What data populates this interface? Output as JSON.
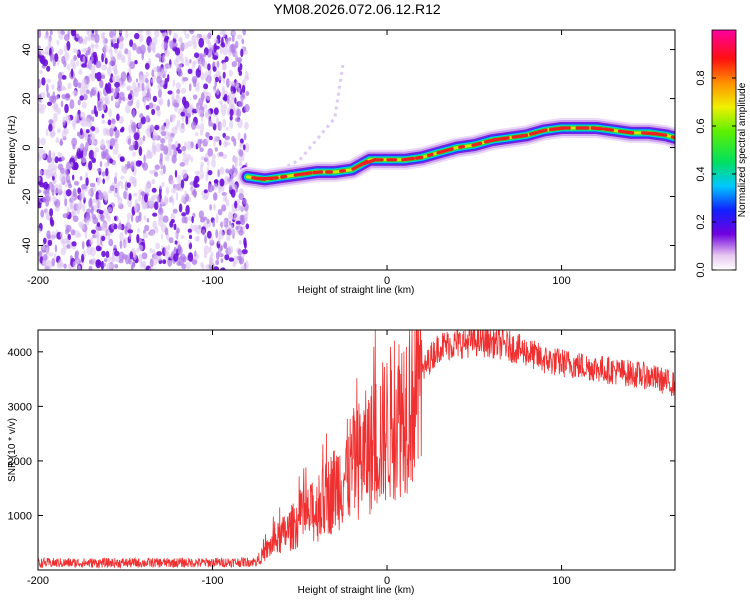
{
  "title": "YM08.2026.072.06.12.R12",
  "chart_data": [
    {
      "type": "heatmap",
      "name": "spectrogram",
      "xlabel": "Height of straight line (km)",
      "ylabel": "Frequency (Hz)",
      "xlim": [
        -200,
        165
      ],
      "ylim": [
        -50,
        48
      ],
      "xticks": [
        -200,
        -100,
        0,
        100
      ],
      "yticks": [
        -40,
        -20,
        0,
        20,
        40
      ],
      "colorbar_label": "Normalized spectral amplitude",
      "colorbar_ticks": [
        0.0,
        0.2,
        0.4,
        0.6,
        0.8
      ],
      "noise_region_x": [
        -200,
        -80
      ],
      "ridge": {
        "x": [
          -80,
          -70,
          -60,
          -50,
          -40,
          -30,
          -20,
          -10,
          0,
          10,
          20,
          30,
          40,
          50,
          60,
          70,
          80,
          90,
          100,
          110,
          120,
          130,
          140,
          150,
          160,
          165
        ],
        "y": [
          -12,
          -13,
          -12,
          -11,
          -10,
          -10,
          -9,
          -5,
          -5,
          -5,
          -4,
          -2,
          0,
          1,
          3,
          4,
          5,
          7,
          8,
          8,
          8,
          7,
          6,
          6,
          5,
          4
        ]
      },
      "streak": {
        "x": [
          -75,
          -50,
          -30,
          -25
        ],
        "y": [
          -14,
          -5,
          12,
          35
        ]
      }
    },
    {
      "type": "line",
      "name": "snr",
      "xlabel": "Height of straight line (km)",
      "ylabel": "SNR (10 * v/v)",
      "xlim": [
        -200,
        165
      ],
      "ylim": [
        0,
        4400
      ],
      "xticks": [
        -200,
        -100,
        0,
        100
      ],
      "yticks": [
        1000,
        2000,
        3000,
        4000
      ],
      "color": "#f03030",
      "envelope": {
        "x": [
          -200,
          -150,
          -100,
          -75,
          -65,
          -50,
          -40,
          -30,
          -20,
          -10,
          0,
          10,
          20,
          25,
          30,
          40,
          50,
          60,
          70,
          80,
          90,
          100,
          110,
          120,
          130,
          140,
          150,
          160,
          165
        ],
        "y": [
          130,
          130,
          135,
          150,
          500,
          900,
          1100,
          1500,
          1900,
          2200,
          2600,
          3000,
          3600,
          3900,
          4100,
          4150,
          4200,
          4180,
          4100,
          4000,
          3850,
          3800,
          3750,
          3700,
          3650,
          3600,
          3550,
          3450,
          3400
        ]
      }
    }
  ]
}
